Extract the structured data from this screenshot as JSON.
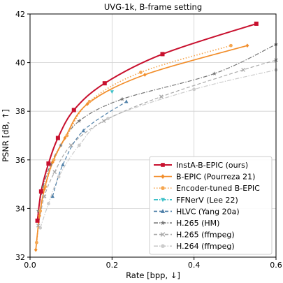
{
  "chart_data": {
    "type": "line",
    "title": "UVG-1k, B-frame setting",
    "xlabel": "Rate [bpp, ↓]",
    "ylabel": "PSNR [dB, ↑]",
    "xlim": [
      0,
      0.6
    ],
    "ylim": [
      32,
      42
    ],
    "xticks": [
      "0.0",
      "0.2",
      "0.4",
      "0.6"
    ],
    "yticks": [
      "32",
      "34",
      "36",
      "38",
      "40",
      "42"
    ],
    "grid": true,
    "legend_position": "bottom-right",
    "series": [
      {
        "name": "InstA-B-EPIC (ours)",
        "color": "#c8102e",
        "marker": "square",
        "dash": "solid",
        "x": [
          0.018,
          0.027,
          0.045,
          0.068,
          0.107,
          0.182,
          0.323,
          0.552
        ],
        "y": [
          33.5,
          34.7,
          35.85,
          36.9,
          38.05,
          39.15,
          40.35,
          41.6
        ]
      },
      {
        "name": "B-EPIC (Pourreza 21)",
        "color": "#f28e2b",
        "marker": "diamond",
        "dash": "solid",
        "x": [
          0.014,
          0.023,
          0.035,
          0.055,
          0.085,
          0.14,
          0.28,
          0.53
        ],
        "y": [
          32.3,
          33.7,
          34.8,
          35.9,
          36.9,
          38.3,
          39.5,
          40.7
        ]
      },
      {
        "name": "Encoder-tuned B-EPIC",
        "color": "#f5a650",
        "marker": "circle",
        "dash": "dotted",
        "x": [
          0.016,
          0.025,
          0.037,
          0.058,
          0.09,
          0.145,
          0.27,
          0.49
        ],
        "y": [
          32.6,
          33.9,
          34.9,
          36.0,
          37.0,
          38.4,
          39.6,
          40.7
        ]
      },
      {
        "name": "FFNerV (Lee 22)",
        "color": "#3ec1c9",
        "marker": "triangle-down",
        "dash": "dashdot",
        "x": [
          0.2
        ],
        "y": [
          38.8
        ]
      },
      {
        "name": "HLVC (Yang 20a)",
        "color": "#4e7fa8",
        "marker": "triangle-up",
        "dash": "dashed",
        "x": [
          0.055,
          0.08,
          0.13,
          0.235
        ],
        "y": [
          34.5,
          35.8,
          37.2,
          38.4
        ]
      },
      {
        "name": "H.265 (HM)",
        "color": "#777777",
        "marker": "star",
        "dash": "dashdot",
        "x": [
          0.02,
          0.032,
          0.05,
          0.075,
          0.12,
          0.225,
          0.45,
          0.6
        ],
        "y": [
          33.9,
          34.9,
          35.8,
          36.6,
          37.6,
          38.5,
          39.55,
          40.75
        ]
      },
      {
        "name": "H.265 (ffmpeg)",
        "color": "#aaaaaa",
        "marker": "x",
        "dash": "dashed",
        "x": [
          0.02,
          0.035,
          0.06,
          0.1,
          0.18,
          0.32,
          0.52,
          0.6
        ],
        "y": [
          33.3,
          34.5,
          35.5,
          36.6,
          37.6,
          38.6,
          39.7,
          40.1
        ]
      },
      {
        "name": "H.264 (ffmpeg)",
        "color": "#cccccc",
        "marker": "circle",
        "dash": "dashdot",
        "x": [
          0.025,
          0.045,
          0.07,
          0.12,
          0.19,
          0.4,
          0.6
        ],
        "y": [
          33.2,
          34.2,
          35.3,
          36.6,
          37.7,
          38.9,
          39.7
        ]
      }
    ]
  }
}
